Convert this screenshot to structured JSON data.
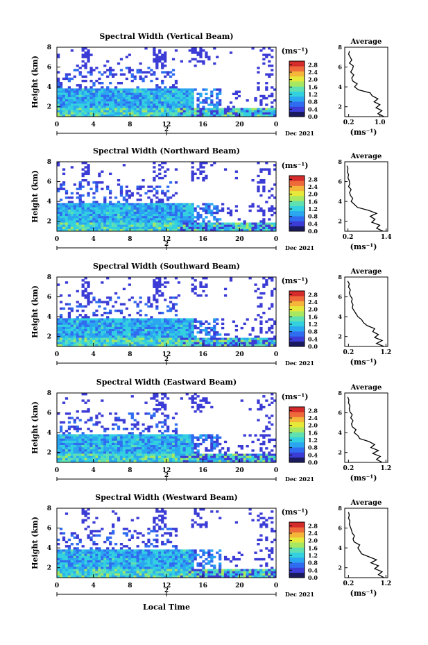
{
  "figure": {
    "xlabel_bottom": "Local Time",
    "colors": {
      "colormap": [
        "#1a1a5e",
        "#3b3bd6",
        "#2f6cf0",
        "#2aa6f0",
        "#33d0e0",
        "#5fe0b0",
        "#a8e860",
        "#e6e83a",
        "#f5b53a",
        "#ef6a3a",
        "#d42a2a"
      ]
    }
  },
  "chart_data": [
    {
      "type": "heatmap",
      "title": "Spectral Width (Vertical Beam)",
      "ylabel": "Height (km)",
      "x_ticks": [
        "0",
        "4",
        "8",
        "12",
        "16",
        "20",
        "0"
      ],
      "x_range": [
        0,
        24
      ],
      "y_ticks": [
        "2",
        "4",
        "6",
        "8"
      ],
      "y_range": [
        1,
        8
      ],
      "date_tick": "2",
      "date_label": "Dec 2021",
      "colorbar": {
        "label": "(ms⁻¹)",
        "ticks": [
          "0.0",
          "0.4",
          "0.8",
          "1.2",
          "1.6",
          "2.0",
          "2.4",
          "2.8"
        ],
        "range": [
          0,
          3.0
        ]
      },
      "profile": {
        "title": "Average",
        "xlabel": "(ms⁻¹)",
        "x_ticks": [
          "0.2",
          "1.0"
        ],
        "x_range": [
          0.1,
          1.2
        ],
        "y_ticks": [
          "2",
          "4",
          "6",
          "8"
        ],
        "y_range": [
          1,
          8
        ],
        "heights": [
          1.0,
          1.3,
          1.6,
          1.9,
          2.2,
          2.5,
          2.8,
          3.1,
          3.4,
          3.7,
          4.0,
          4.3,
          4.6,
          4.9,
          5.2,
          5.5,
          5.8,
          6.1,
          6.4,
          6.7,
          7.0,
          7.3,
          7.6
        ],
        "values": [
          1.1,
          0.95,
          1.05,
          0.9,
          1.0,
          0.85,
          0.95,
          0.8,
          0.75,
          0.45,
          0.35,
          0.42,
          0.3,
          0.28,
          0.33,
          0.25,
          0.3,
          0.32,
          0.22,
          0.28,
          0.24,
          0.2,
          0.22
        ]
      }
    },
    {
      "type": "heatmap",
      "title": "Spectral Width (Northward Beam)",
      "ylabel": "Height (km)",
      "x_ticks": [
        "0",
        "4",
        "8",
        "12",
        "16",
        "20",
        "0"
      ],
      "x_range": [
        0,
        24
      ],
      "y_ticks": [
        "2",
        "4",
        "6",
        "8"
      ],
      "y_range": [
        1,
        8
      ],
      "date_tick": "2",
      "date_label": "Dec 2021",
      "colorbar": {
        "label": "(ms⁻¹)",
        "ticks": [
          "0.0",
          "0.4",
          "0.8",
          "1.2",
          "1.6",
          "2.0",
          "2.4",
          "2.8"
        ],
        "range": [
          0,
          3.0
        ]
      },
      "profile": {
        "title": "Average",
        "xlabel": "(ms⁻¹)",
        "x_ticks": [
          "0.2",
          "1.4"
        ],
        "x_range": [
          0.1,
          1.45
        ],
        "y_ticks": [
          "2",
          "4",
          "6",
          "8"
        ],
        "y_range": [
          1,
          8
        ],
        "heights": [
          1.0,
          1.3,
          1.6,
          1.9,
          2.2,
          2.5,
          2.8,
          3.1,
          3.4,
          3.7,
          4.0,
          4.3,
          4.6,
          4.9,
          5.2,
          5.5,
          5.8,
          6.1,
          6.4,
          6.7,
          7.0,
          7.3,
          7.6
        ],
        "values": [
          1.3,
          1.1,
          1.2,
          0.95,
          1.05,
          0.9,
          1.1,
          0.85,
          0.5,
          0.4,
          0.3,
          0.35,
          0.28,
          0.25,
          0.3,
          0.22,
          0.26,
          0.24,
          0.2,
          0.22,
          0.18,
          0.2,
          0.17
        ]
      }
    },
    {
      "type": "heatmap",
      "title": "Spectral Width (Southward Beam)",
      "ylabel": "Height (km)",
      "x_ticks": [
        "0",
        "4",
        "8",
        "12",
        "16",
        "20",
        "0"
      ],
      "x_range": [
        0,
        24
      ],
      "y_ticks": [
        "2",
        "4",
        "6",
        "8"
      ],
      "y_range": [
        1,
        8
      ],
      "date_tick": "2",
      "date_label": "Dec 2021",
      "colorbar": {
        "label": "(ms⁻¹)",
        "ticks": [
          "0.0",
          "0.4",
          "0.8",
          "1.2",
          "1.6",
          "2.0",
          "2.4",
          "2.8"
        ],
        "range": [
          0,
          3.0
        ]
      },
      "profile": {
        "title": "Average",
        "xlabel": "(ms⁻¹)",
        "x_ticks": [
          "0.2",
          "1.2"
        ],
        "x_range": [
          0.1,
          1.25
        ],
        "y_ticks": [
          "2",
          "4",
          "6",
          "8"
        ],
        "y_range": [
          1,
          8
        ],
        "heights": [
          1.0,
          1.3,
          1.6,
          1.9,
          2.2,
          2.5,
          2.8,
          3.1,
          3.4,
          3.7,
          4.0,
          4.3,
          4.6,
          4.9,
          5.2,
          5.5,
          5.8,
          6.1,
          6.4,
          6.7,
          7.0,
          7.3,
          7.6
        ],
        "values": [
          1.15,
          0.95,
          1.1,
          0.9,
          1.0,
          0.85,
          0.9,
          0.7,
          0.6,
          0.55,
          0.45,
          0.4,
          0.35,
          0.3,
          0.32,
          0.28,
          0.3,
          0.25,
          0.22,
          0.25,
          0.2,
          0.22,
          0.18
        ]
      }
    },
    {
      "type": "heatmap",
      "title": "Spectral Width (Eastward Beam)",
      "ylabel": "Height (km)",
      "x_ticks": [
        "0",
        "4",
        "8",
        "12",
        "16",
        "20",
        "0"
      ],
      "x_range": [
        0,
        24
      ],
      "y_ticks": [
        "2",
        "4",
        "6",
        "8"
      ],
      "y_range": [
        1,
        8
      ],
      "date_tick": "2",
      "date_label": "Dec 2021",
      "colorbar": {
        "label": "(ms⁻¹)",
        "ticks": [
          "0.0",
          "0.4",
          "0.8",
          "1.2",
          "1.6",
          "2.0",
          "2.4",
          "2.8"
        ],
        "range": [
          0,
          3.0
        ]
      },
      "profile": {
        "title": "Average",
        "xlabel": "(ms⁻¹)",
        "x_ticks": [
          "0.2",
          "1.2"
        ],
        "x_range": [
          0.1,
          1.25
        ],
        "y_ticks": [
          "2",
          "4",
          "6",
          "8"
        ],
        "y_range": [
          1,
          8
        ],
        "heights": [
          1.0,
          1.3,
          1.6,
          1.9,
          2.2,
          2.5,
          2.8,
          3.1,
          3.4,
          3.7,
          4.0,
          4.3,
          4.6,
          4.9,
          5.2,
          5.5,
          5.8,
          6.1,
          6.4,
          6.7,
          7.0,
          7.3,
          7.6
        ],
        "values": [
          1.1,
          0.95,
          1.05,
          0.85,
          1.0,
          0.8,
          0.9,
          0.75,
          0.5,
          0.45,
          0.35,
          0.4,
          0.3,
          0.28,
          0.32,
          0.26,
          0.3,
          0.24,
          0.22,
          0.24,
          0.2,
          0.21,
          0.18
        ]
      }
    },
    {
      "type": "heatmap",
      "title": "Spectral Width (Westward Beam)",
      "ylabel": "Height (km)",
      "x_ticks": [
        "0",
        "4",
        "8",
        "12",
        "16",
        "20",
        "0"
      ],
      "x_range": [
        0,
        24
      ],
      "y_ticks": [
        "2",
        "4",
        "6",
        "8"
      ],
      "y_range": [
        1,
        8
      ],
      "date_tick": "2",
      "date_label": "Dec 2021",
      "colorbar": {
        "label": "(ms⁻¹)",
        "ticks": [
          "0.0",
          "0.4",
          "0.8",
          "1.2",
          "1.6",
          "2.0",
          "2.4",
          "2.8"
        ],
        "range": [
          0,
          3.0
        ]
      },
      "profile": {
        "title": "Average",
        "xlabel": "(ms⁻¹)",
        "x_ticks": [
          "0.2",
          "1.2"
        ],
        "x_range": [
          0.1,
          1.25
        ],
        "y_ticks": [
          "2",
          "4",
          "6",
          "8"
        ],
        "y_range": [
          1,
          8
        ],
        "heights": [
          1.0,
          1.3,
          1.6,
          1.9,
          2.2,
          2.5,
          2.8,
          3.1,
          3.4,
          3.7,
          4.0,
          4.3,
          4.6,
          4.9,
          5.2,
          5.5,
          5.8,
          6.1,
          6.4,
          6.7,
          7.0,
          7.3,
          7.6
        ],
        "values": [
          1.15,
          1.0,
          1.1,
          0.9,
          1.0,
          0.8,
          0.95,
          0.75,
          0.55,
          0.5,
          0.45,
          0.5,
          0.35,
          0.32,
          0.36,
          0.3,
          0.28,
          0.25,
          0.22,
          0.24,
          0.2,
          0.22,
          0.2
        ]
      }
    }
  ]
}
